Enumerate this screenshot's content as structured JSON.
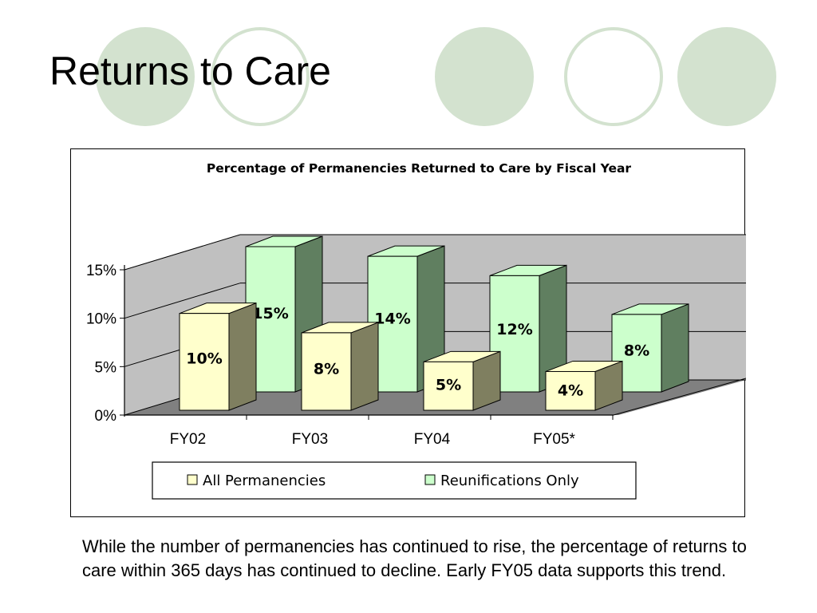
{
  "slide": {
    "title": "Returns to Care",
    "caption": "While the number of permanencies has continued to rise, the percentage of returns to care within 365 days has continued to decline.  Early FY05 data supports this trend."
  },
  "colors": {
    "decor_green": "#d3e2cf",
    "series_all_front": "#ffffcc",
    "series_all_side": "#7f7f60",
    "series_reun_front": "#ccffcc",
    "series_reun_side": "#607f60",
    "wall": "#c0c0c0",
    "floor": "#808080"
  },
  "chart_data": {
    "type": "bar",
    "title": "Percentage of Permanencies Returned to Care by Fiscal Year",
    "xlabel": "",
    "ylabel": "",
    "categories": [
      "FY02",
      "FY03",
      "FY04",
      "FY05*"
    ],
    "y_ticks": [
      "0%",
      "5%",
      "10%",
      "15%"
    ],
    "ylim": [
      0,
      15
    ],
    "grid": true,
    "legend_position": "bottom",
    "series": [
      {
        "name": "All Permanencies",
        "values": [
          10,
          8,
          5,
          4
        ],
        "labels": [
          "10%",
          "8%",
          "5%",
          "4%"
        ]
      },
      {
        "name": "Reunifications Only",
        "values": [
          15,
          14,
          12,
          8
        ],
        "labels": [
          "15%",
          "14%",
          "12%",
          "8%"
        ]
      }
    ]
  }
}
